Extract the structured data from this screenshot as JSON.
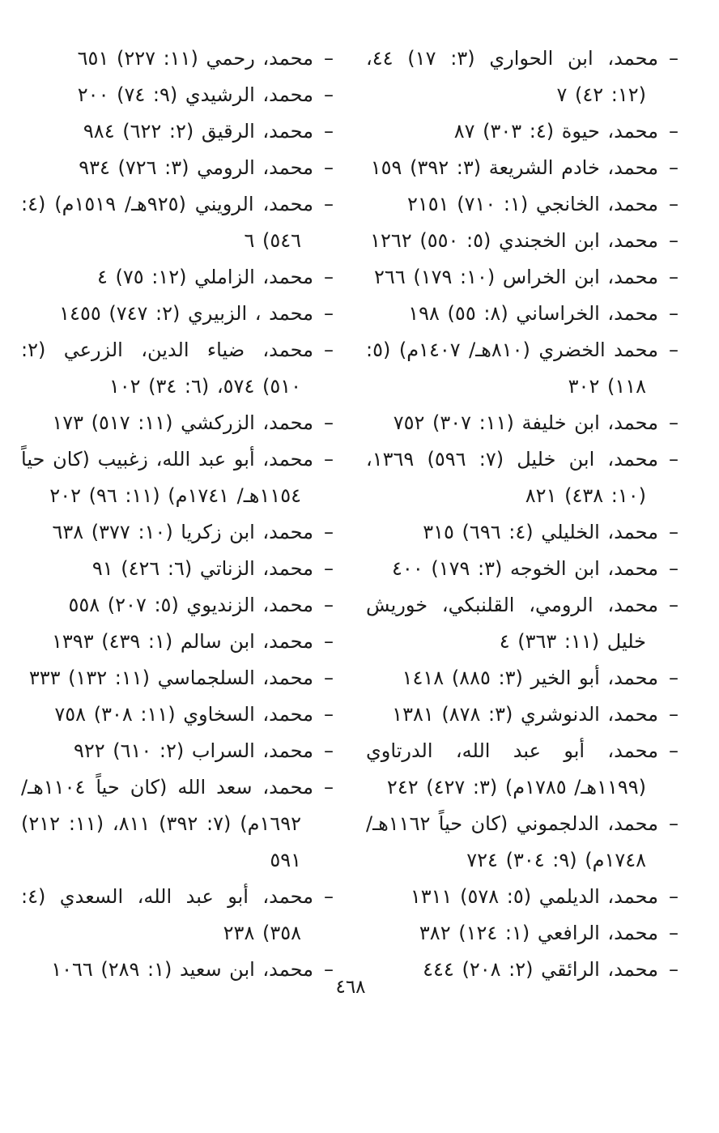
{
  "page": {
    "number": "٤٦٨",
    "language": "arabic",
    "background_color": "#ffffff",
    "text_color": "#1a1a1a"
  },
  "index": {
    "entry_marker": "–",
    "columns": {
      "right": {
        "entries": [
          "محمد، ابن الحواري (٣: ١٧) ٤٤، (١٢: ٤٢) ٧",
          "محمد، حيوة (٤: ٣٠٣) ٨٧",
          "محمد، خادم الشريعة (٣: ٣٩٢) ١٥٩",
          "محمد، الخانجي (١: ٧١٠) ٢١٥١",
          "محمد، ابن الخجندي (٥: ٥٥٠) ١٢٦٢",
          "محمد، ابن الخراس (١٠: ١٧٩) ٢٦٦",
          "محمد، الخراساني (٨: ٥٥) ١٩٨",
          "محمد الخضري (٨١٠هـ/ ١٤٠٧م) (٥: ١١٨) ٣٠٢",
          "محمد، ابن خليفة (١١: ٣٠٧) ٧٥٢",
          "محمد، ابن خليل (٧: ٥٩٦) ١٣٦٩، (١٠: ٤٣٨) ٨٢١",
          "محمد، الخليلي (٤: ٦٩٦) ٣١٥",
          "محمد، ابن الخوجه (٣: ١٧٩) ٤٠٠",
          "محمد، الرومي، القلنبكي، خوريش خليل (١١: ٣٦٣) ٤",
          "محمد، أبو الخير (٣: ٨٨٥) ١٤١٨",
          "محمد، الدنوشري (٣: ٨٧٨) ١٣٨١",
          "محمد، أبو عبد الله، الدرتاوي (١١٩٩هـ/ ١٧٨٥م) (٣: ٤٢٧) ٢٤٢",
          "محمد، الدلجموني (كان حياً ١١٦٢هـ/ ١٧٤٨م) (٩: ٣٠٤) ٧٢٤",
          "محمد، الديلمي (٥: ٥٧٨) ١٣١١",
          "محمد، الرافعي (١: ١٢٤) ٣٨٢",
          "محمد، الرائقي (٢: ٢٠٨) ٤٤٤"
        ]
      },
      "left": {
        "entries": [
          "محمد، رحمي (١١: ٢٢٧) ٦٥١",
          "محمد، الرشيدي (٩: ٧٤) ٢٠٠",
          "محمد، الرقيق (٢: ٦٢٢) ٩٨٤",
          "محمد، الرومي (٣: ٧٢٦) ٩٣٤",
          "محمد، الرويني (٩٢٥هـ/ ١٥١٩م) (٤: ٥٤٦) ٦",
          "محمد، الزاملي (١٢: ٧٥) ٤",
          "محمد ، الزبيري (٢: ٧٤٧) ١٤٥٥",
          "محمد، ضياء الدين، الزرعي (٢: ٥١٠) ٥٧٤، (٦: ٣٤) ١٠٢",
          "محمد، الزركشي (١١: ٥١٧) ١٧٣",
          "محمد، أبو عبد الله، زغبيب (كان حياً ١١٥٤هـ/ ١٧٤١م) (١١: ٩٦) ٢٠٢",
          "محمد، ابن زكريا (١٠: ٣٧٧) ٦٣٨",
          "محمد، الزناتي (٦: ٤٢٦) ٩١",
          "محمد، الزنديوي (٥: ٢٠٧) ٥٥٨",
          "محمد، ابن سالم (١: ٤٣٩) ١٣٩٣",
          "محمد، السلجماسي (١١: ١٣٢) ٣٣٣",
          "محمد، السخاوي (١١: ٣٠٨) ٧٥٨",
          "محمد، السراب (٢: ٦١٠) ٩٢٢",
          "محمد، سعد الله (كان حياً ١١٠٤هـ/ ١٦٩٢م) (٧: ٣٩٢) ٨١١، (١١: ٢١٢) ٥٩١",
          "محمد، أبو عبد الله، السعدي (٤: ٣٥٨) ٢٣٨",
          "محمد، ابن سعيد (١: ٢٨٩) ١٠٦٦"
        ]
      }
    }
  }
}
